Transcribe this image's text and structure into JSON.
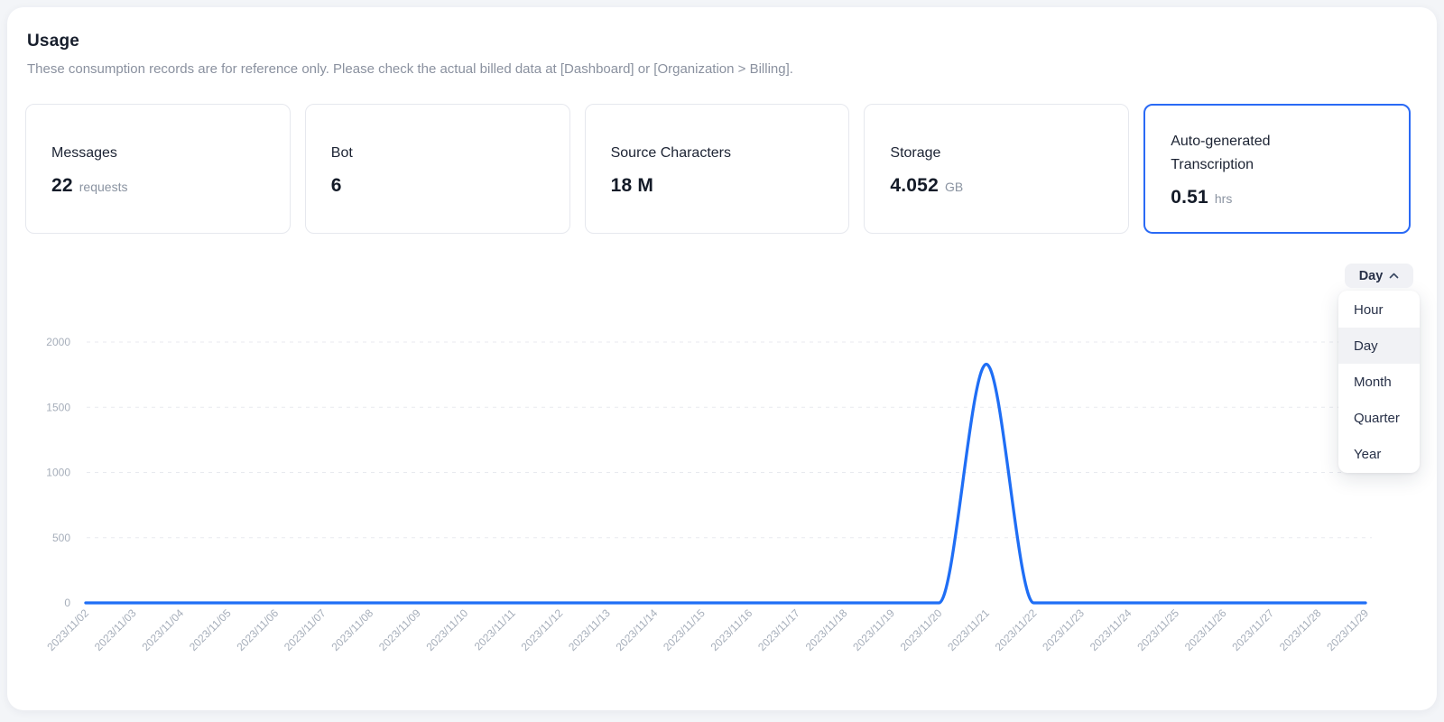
{
  "page": {
    "title": "Usage",
    "subtitle": "These consumption records are for reference only. Please check the actual billed data at [Dashboard] or [Organization > Billing]."
  },
  "colors": {
    "accent": "#2a6af5",
    "line": "#1f6ef5",
    "grid": "#e8eaef",
    "tick_text": "#a6aeba"
  },
  "stats": {
    "cards": [
      {
        "label": "Messages",
        "value": "22",
        "unit": "requests",
        "selected": false
      },
      {
        "label": "Bot",
        "value": "6",
        "unit": "",
        "selected": false
      },
      {
        "label": "Source Characters",
        "value": "18 M",
        "unit": "",
        "selected": false
      },
      {
        "label": "Storage",
        "value": "4.052",
        "unit": "GB",
        "selected": false
      },
      {
        "label": "Auto-generated Transcription",
        "value": "0.51",
        "unit": "hrs",
        "selected": true
      }
    ]
  },
  "granularity": {
    "selected": "Day",
    "highlighted": "Day",
    "chevron_icon": "chevron-up",
    "options": [
      "Hour",
      "Day",
      "Month",
      "Quarter",
      "Year"
    ]
  },
  "chart_data": {
    "type": "line",
    "x": [
      "2023/11/02",
      "2023/11/03",
      "2023/11/04",
      "2023/11/05",
      "2023/11/06",
      "2023/11/07",
      "2023/11/08",
      "2023/11/09",
      "2023/11/10",
      "2023/11/11",
      "2023/11/12",
      "2023/11/13",
      "2023/11/14",
      "2023/11/15",
      "2023/11/16",
      "2023/11/17",
      "2023/11/18",
      "2023/11/19",
      "2023/11/20",
      "2023/11/21",
      "2023/11/22",
      "2023/11/23",
      "2023/11/24",
      "2023/11/25",
      "2023/11/26",
      "2023/11/27",
      "2023/11/28",
      "2023/11/29"
    ],
    "series": [
      {
        "values": [
          0,
          0,
          0,
          0,
          0,
          0,
          0,
          0,
          0,
          0,
          0,
          0,
          0,
          0,
          0,
          0,
          0,
          0,
          0,
          1830,
          0,
          0,
          0,
          0,
          0,
          0,
          0,
          0
        ]
      }
    ],
    "ylim": [
      0,
      2000
    ],
    "yticks": [
      0,
      500,
      1000,
      1500,
      2000
    ],
    "grid": "horizontal-dashed",
    "legend": "none",
    "title": "",
    "xlabel": "",
    "ylabel": "",
    "line_color": "#1f6ef5",
    "grid_color": "#e8eaef",
    "smooth": true
  }
}
